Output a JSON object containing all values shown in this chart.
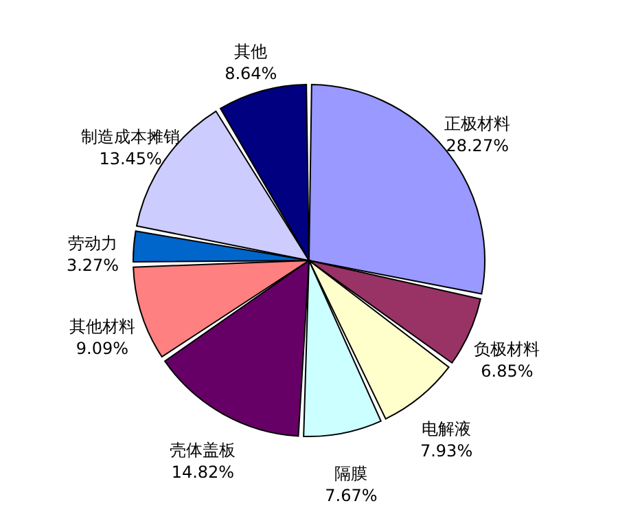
{
  "chart_data": {
    "type": "pie",
    "categories": [
      "正极材料",
      "负极材料",
      "电解液",
      "隔膜",
      "壳体盖板",
      "其他材料",
      "劳动力",
      "制造成本摊销",
      "其他"
    ],
    "values": [
      28.27,
      6.85,
      7.93,
      7.67,
      14.82,
      9.09,
      3.27,
      13.45,
      8.64
    ],
    "value_labels": [
      "28.27%",
      "6.85%",
      "7.93%",
      "7.67%",
      "14.82%",
      "9.09%",
      "3.27%",
      "13.45%",
      "8.64%"
    ],
    "colors": [
      "#9999ff",
      "#993366",
      "#ffffcc",
      "#ccffff",
      "#660066",
      "#ff8080",
      "#0066cc",
      "#ccccff",
      "#000080"
    ]
  }
}
